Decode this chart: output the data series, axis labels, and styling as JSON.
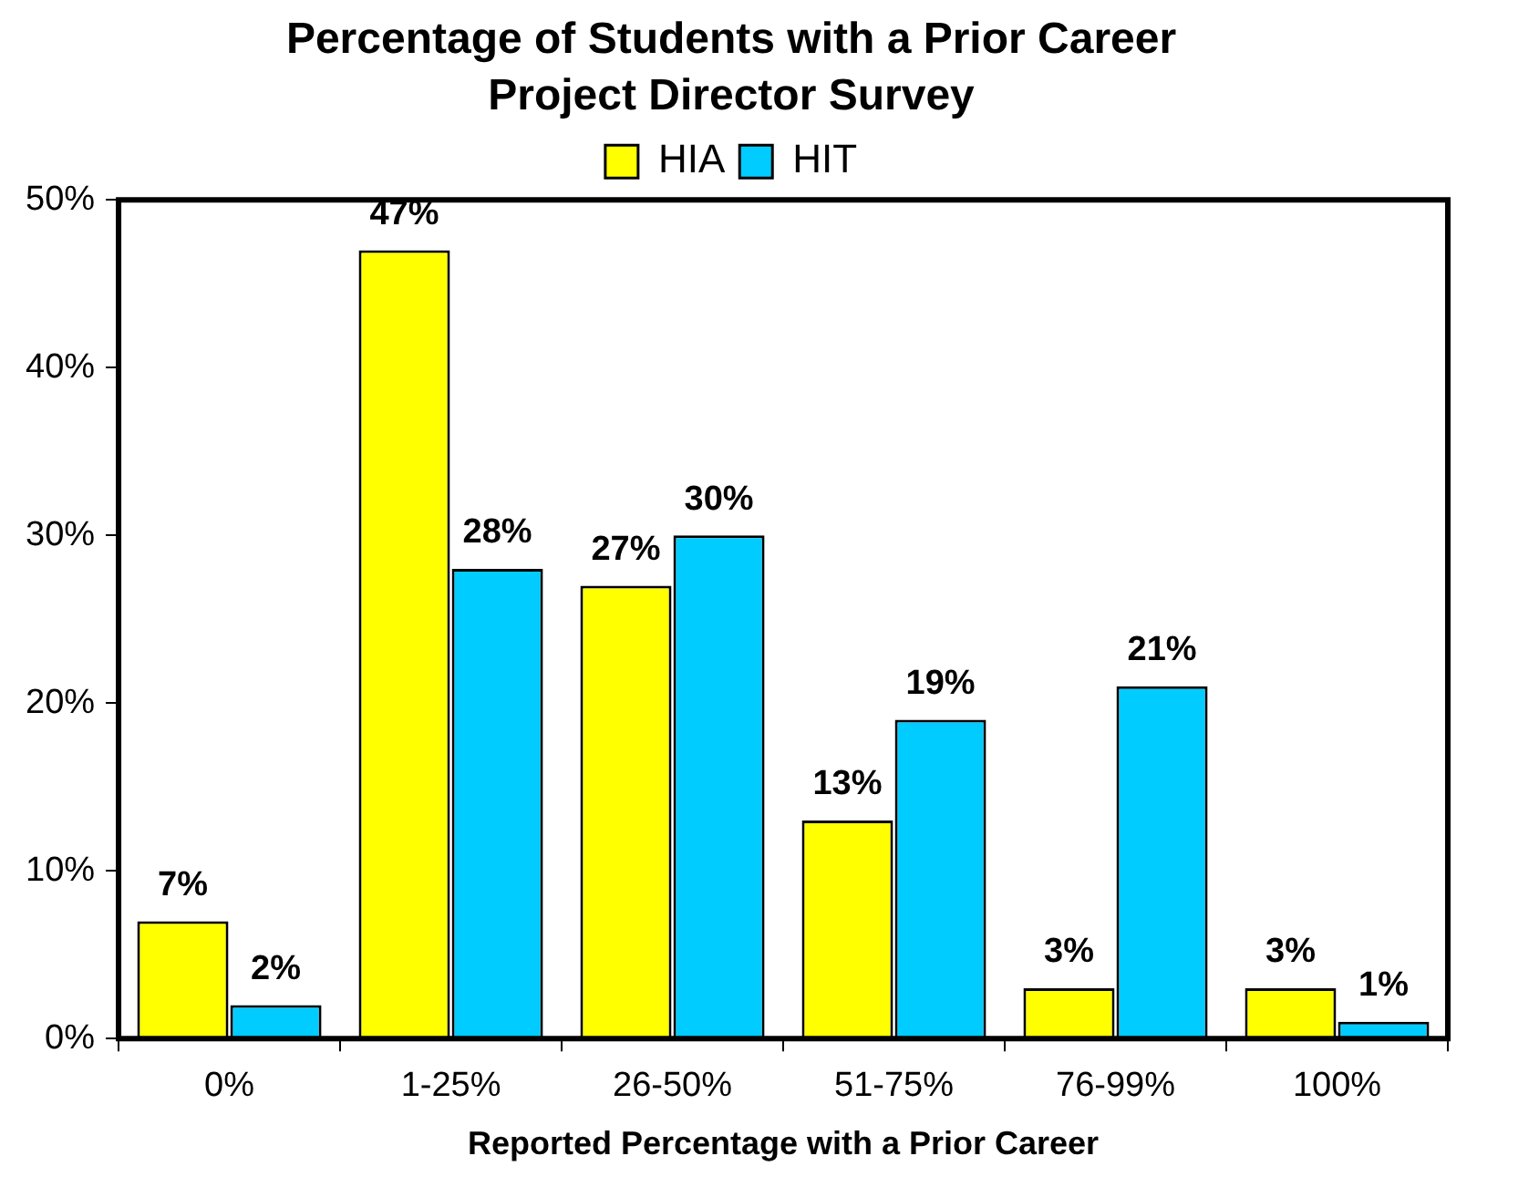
{
  "chart_data": {
    "type": "bar",
    "title": "Percentage of Students with a Prior Career",
    "subtitle": "Project Director Survey",
    "xlabel": "Reported Percentage with a Prior Career",
    "categories": [
      "0%",
      "1-25%",
      "26-50%",
      "51-75%",
      "76-99%",
      "100%"
    ],
    "series": [
      {
        "name": "HIA",
        "color": "#ffff00",
        "values": [
          7,
          47,
          27,
          13,
          3,
          3
        ],
        "value_labels": [
          "7%",
          "47%",
          "27%",
          "13%",
          "3%",
          "3%"
        ]
      },
      {
        "name": "HIT",
        "color": "#00ccff",
        "values": [
          2,
          28,
          30,
          19,
          21,
          1
        ],
        "value_labels": [
          "2%",
          "28%",
          "30%",
          "19%",
          "21%",
          "1%"
        ]
      }
    ],
    "ylim": [
      0,
      50
    ],
    "yticks": [
      {
        "value": 0,
        "label": "0%"
      },
      {
        "value": 10,
        "label": "10%"
      },
      {
        "value": 20,
        "label": "20%"
      },
      {
        "value": 30,
        "label": "30%"
      },
      {
        "value": 40,
        "label": "40%"
      },
      {
        "value": 50,
        "label": "50%"
      }
    ],
    "grid": false,
    "legend": "top"
  }
}
